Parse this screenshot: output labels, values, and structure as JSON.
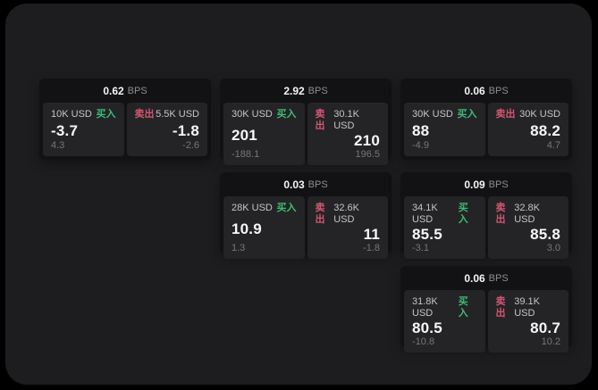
{
  "theme": {
    "outer_bg": "#000000",
    "panel_bg": "#1d1d1f",
    "card_bg": "#121214",
    "tile_bg": "#242427",
    "buy_color": "#3fbb73",
    "sell_color": "#d25670"
  },
  "labels": {
    "bps_unit": "BPS",
    "buy": "买入",
    "sell": "卖出"
  },
  "cards": [
    {
      "bps": "0.62",
      "buy_size": "10K USD",
      "buy_price": "-3.7",
      "buy_delta": "4.3",
      "sell_size": "5.5K USD",
      "sell_price": "-1.8",
      "sell_delta": "-2.6"
    },
    {
      "bps": "2.92",
      "buy_size": "30K USD",
      "buy_price": "201",
      "buy_delta": "-188.1",
      "sell_size": "30.1K USD",
      "sell_price": "210",
      "sell_delta": "196.5"
    },
    {
      "bps": "0.06",
      "buy_size": "30K USD",
      "buy_price": "88",
      "buy_delta": "-4.9",
      "sell_size": "30K USD",
      "sell_price": "88.2",
      "sell_delta": "4.7"
    },
    {
      "bps": "0.03",
      "buy_size": "28K USD",
      "buy_price": "10.9",
      "buy_delta": "1.3",
      "sell_size": "32.6K USD",
      "sell_price": "11",
      "sell_delta": "-1.8"
    },
    {
      "bps": "0.09",
      "buy_size": "34.1K USD",
      "buy_price": "85.5",
      "buy_delta": "-3.1",
      "sell_size": "32.8K USD",
      "sell_price": "85.8",
      "sell_delta": "3.0"
    },
    {
      "bps": "0.06",
      "buy_size": "31.8K USD",
      "buy_price": "80.5",
      "buy_delta": "-10.8",
      "sell_size": "39.1K USD",
      "sell_price": "80.7",
      "sell_delta": "10.2"
    }
  ]
}
